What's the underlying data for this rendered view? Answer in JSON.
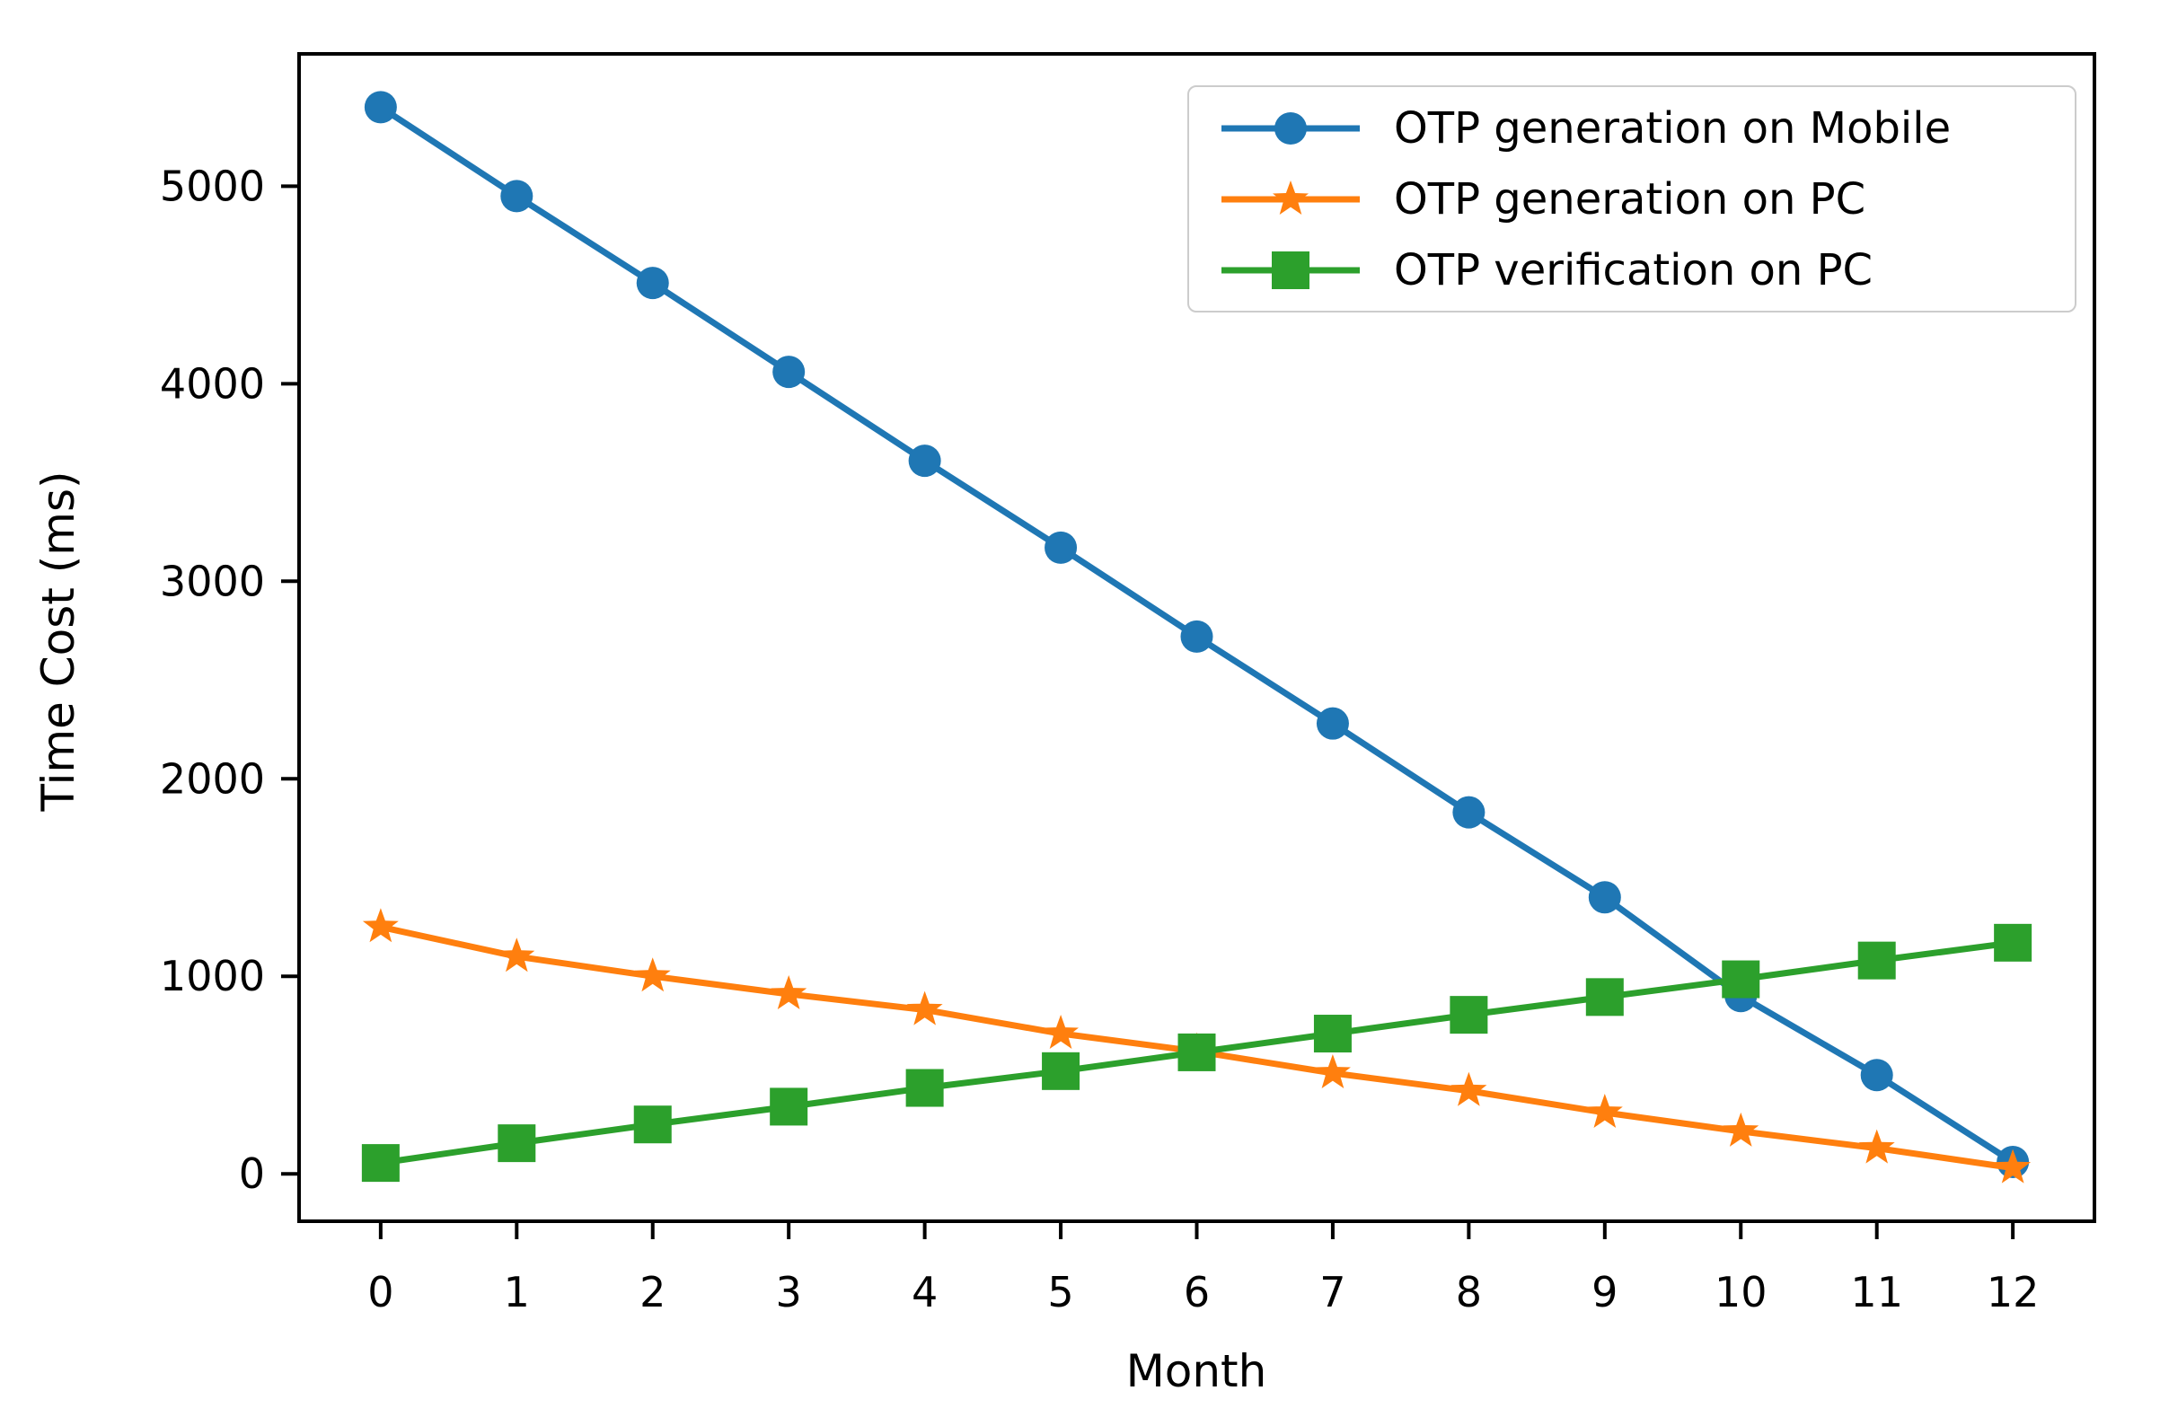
{
  "chart_data": {
    "type": "line",
    "title": "",
    "xlabel": "Month",
    "ylabel": "Time Cost (ms)",
    "grid": false,
    "legend_position": "upper right",
    "x": [
      0,
      1,
      2,
      3,
      4,
      5,
      6,
      7,
      8,
      9,
      10,
      11,
      12
    ],
    "x_tick_labels": [
      "0",
      "1",
      "2",
      "3",
      "4",
      "5",
      "6",
      "7",
      "8",
      "9",
      "10",
      "11",
      "12"
    ],
    "y_ticks": [
      0,
      1000,
      2000,
      3000,
      4000,
      5000
    ],
    "y_tick_labels": [
      "0",
      "1000",
      "2000",
      "3000",
      "4000",
      "5000"
    ],
    "xlim": [
      -0.6,
      12.6
    ],
    "ylim": [
      -240,
      5670
    ],
    "series": [
      {
        "name": "OTP generation on Mobile",
        "color": "#1f77b4",
        "marker": "circle",
        "values": [
          5400,
          4950,
          4510,
          4060,
          3610,
          3170,
          2720,
          2280,
          1830,
          1400,
          900,
          500,
          60
        ]
      },
      {
        "name": "OTP generation on PC",
        "color": "#ff7f0e",
        "marker": "star",
        "values": [
          1250,
          1100,
          1000,
          910,
          830,
          710,
          620,
          510,
          420,
          310,
          215,
          130,
          30
        ]
      },
      {
        "name": "OTP verification on PC",
        "color": "#2ca02c",
        "marker": "square",
        "values": [
          55,
          155,
          250,
          340,
          435,
          520,
          615,
          710,
          805,
          895,
          985,
          1080,
          1170
        ]
      }
    ]
  }
}
